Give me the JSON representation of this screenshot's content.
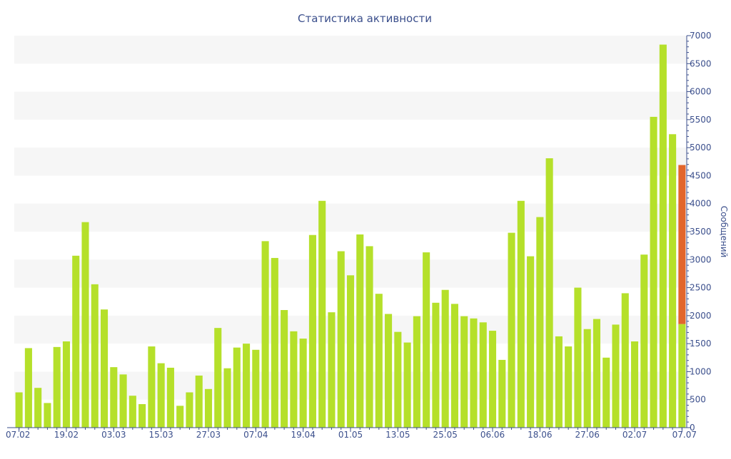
{
  "chart_data": {
    "type": "bar",
    "title": "Статистика активности",
    "ylabel": "Сообщений",
    "xlabel": "",
    "ylim": [
      0,
      7000
    ],
    "y_ticks": [
      0,
      500,
      1000,
      1500,
      2000,
      2500,
      3000,
      3500,
      4000,
      4500,
      5000,
      5500,
      6000,
      6500,
      7000
    ],
    "y_axis_side": "right",
    "x_tick_labels": [
      {
        "index": 0,
        "label": "07.02"
      },
      {
        "index": 5,
        "label": "19.02"
      },
      {
        "index": 10,
        "label": "03.03"
      },
      {
        "index": 15,
        "label": "15.03"
      },
      {
        "index": 20,
        "label": "27.03"
      },
      {
        "index": 25,
        "label": "07.04"
      },
      {
        "index": 30,
        "label": "19.04"
      },
      {
        "index": 35,
        "label": "01.05"
      },
      {
        "index": 40,
        "label": "13.05"
      },
      {
        "index": 45,
        "label": "25.05"
      },
      {
        "index": 50,
        "label": "06.06"
      },
      {
        "index": 55,
        "label": "18.06"
      },
      {
        "index": 60,
        "label": "27.06"
      },
      {
        "index": 65,
        "label": "02.07"
      },
      {
        "index": 70,
        "label": "07.07"
      }
    ],
    "values": [
      630,
      1420,
      710,
      440,
      1440,
      1540,
      3070,
      3670,
      2560,
      2110,
      1080,
      950,
      570,
      420,
      1450,
      1150,
      1070,
      390,
      630,
      930,
      690,
      1780,
      1060,
      1430,
      1500,
      1390,
      3330,
      3030,
      2100,
      1720,
      1590,
      3440,
      4050,
      2060,
      3150,
      2720,
      3450,
      3240,
      2390,
      2030,
      1710,
      1520,
      1990,
      3130,
      2230,
      2460,
      2210,
      1990,
      1950,
      1880,
      1730,
      1210,
      3480,
      4050,
      3060,
      3760,
      4810,
      1630,
      1450,
      2500,
      1760,
      1940,
      1250,
      1840,
      2400,
      1540,
      3090,
      5550,
      6840,
      5240,
      4690
    ],
    "last_bar_split": {
      "lower": 1850,
      "upper_total": 4690
    },
    "colors": {
      "bar": "#b5e02a",
      "bar_highlight": "#e2662c",
      "band": "#f6f6f6",
      "axis": "#3b4f8c"
    },
    "grid": "alternating horizontal bands"
  }
}
